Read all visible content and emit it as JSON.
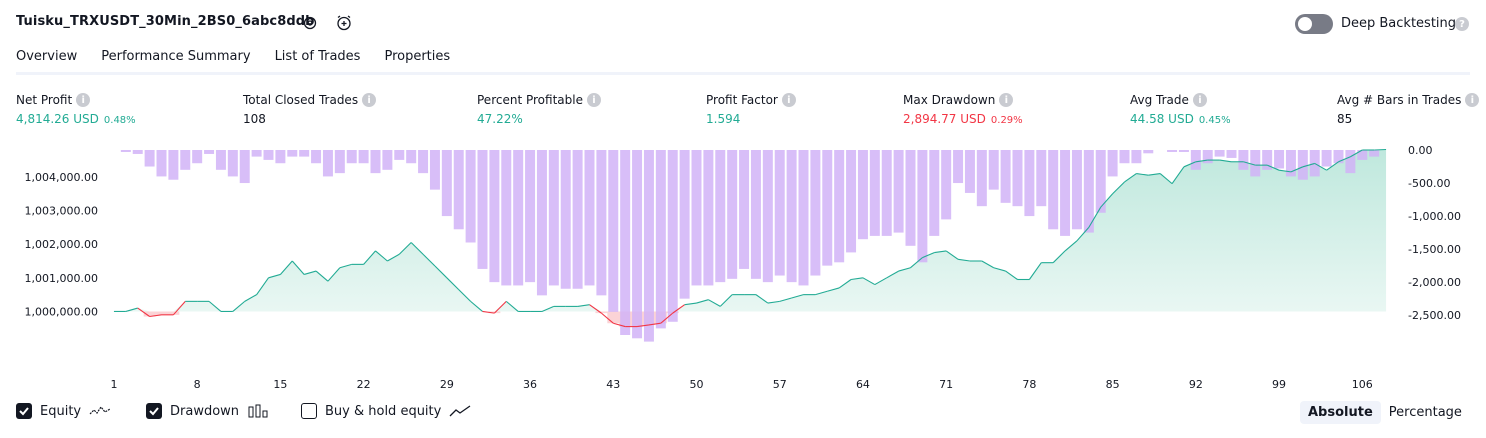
{
  "header": {
    "strategy_title": "Tuisku_TRXUSDT_30Min_2BS0_6abc8ddb",
    "settings_icon": "gear-icon",
    "alert_icon": "alarm-clock-plus-icon",
    "deep_backtesting_label": "Deep Backtesting",
    "deep_backtesting_on": false,
    "help_icon": "question-icon"
  },
  "tabs": [
    {
      "label": "Overview",
      "active": true
    },
    {
      "label": "Performance Summary",
      "active": false
    },
    {
      "label": "List of Trades",
      "active": false
    },
    {
      "label": "Properties",
      "active": false
    }
  ],
  "metrics": {
    "net_profit": {
      "label": "Net Profit",
      "value": "4,814.26 USD",
      "pct": "0.48%"
    },
    "total_closed_trades": {
      "label": "Total Closed Trades",
      "value": "108"
    },
    "percent_profitable": {
      "label": "Percent Profitable",
      "value": "47.22%"
    },
    "profit_factor": {
      "label": "Profit Factor",
      "value": "1.594"
    },
    "max_drawdown": {
      "label": "Max Drawdown",
      "value": "2,894.77 USD",
      "pct": "0.29%"
    },
    "avg_trade": {
      "label": "Avg Trade",
      "value": "44.58 USD",
      "pct": "0.45%"
    },
    "avg_bars": {
      "label": "Avg # Bars in Trades",
      "value": "85"
    }
  },
  "colors": {
    "green": "#22ab94",
    "red": "#f23645",
    "drawdown_bar": "#d1b3f7",
    "equity_fill": "#cdeee6"
  },
  "chart_data": {
    "type": "area",
    "x_ticks": [
      "1",
      "8",
      "15",
      "22",
      "29",
      "36",
      "43",
      "50",
      "57",
      "64",
      "71",
      "78",
      "85",
      "92",
      "99",
      "106"
    ],
    "y_left_ticks": [
      "1,004,000.00",
      "1,003,000.00",
      "1,002,000.00",
      "1,001,000.00",
      "1,000,000.00"
    ],
    "y_left_values": [
      1004000,
      1003000,
      1002000,
      1001000,
      1000000
    ],
    "y_right_ticks": [
      "0.00",
      "-500.00",
      "-1,000.00",
      "-1,500.00",
      "-2,000.00",
      "-2,500.00"
    ],
    "y_right_values": [
      0,
      -500,
      -1000,
      -1500,
      -2000,
      -2500
    ],
    "ylim_left": [
      999300,
      1004800
    ],
    "ylim_right": [
      -2800,
      0
    ],
    "series": [
      {
        "name": "Equity",
        "values": [
          1000000,
          1000000,
          1000100,
          999850,
          999900,
          999900,
          1000300,
          1000300,
          1000300,
          1000000,
          1000000,
          1000300,
          1000500,
          1001000,
          1001100,
          1001500,
          1001100,
          1001200,
          1000900,
          1001300,
          1001400,
          1001400,
          1001800,
          1001500,
          1001700,
          1002050,
          1001700,
          1001350,
          1001000,
          1000650,
          1000300,
          1000000,
          999950,
          1000300,
          1000000,
          1000000,
          1000000,
          1000150,
          1000150,
          1000150,
          1000200,
          999950,
          999650,
          999550,
          999550,
          999600,
          999650,
          999950,
          1000200,
          1000250,
          1000350,
          1000150,
          1000500,
          1000500,
          1000500,
          1000250,
          1000300,
          1000400,
          1000500,
          1000500,
          1000600,
          1000700,
          1000950,
          1001000,
          1000800,
          1001000,
          1001200,
          1001300,
          1001600,
          1001750,
          1001800,
          1001550,
          1001500,
          1001500,
          1001300,
          1001200,
          1000950,
          1000950,
          1001450,
          1001450,
          1001800,
          1002100,
          1002500,
          1003100,
          1003500,
          1003850,
          1004100,
          1004050,
          1004100,
          1003800,
          1004300,
          1004450,
          1004500,
          1004500,
          1004450,
          1004450,
          1004350,
          1004350,
          1004200,
          1004150,
          1004300,
          1004400,
          1004200,
          1004450,
          1004600,
          1004800,
          1004800,
          1004815
        ]
      },
      {
        "name": "Drawdown",
        "values": [
          0,
          -30,
          -60,
          -250,
          -400,
          -450,
          -300,
          -200,
          -60,
          -300,
          -400,
          -500,
          -100,
          -150,
          -200,
          -100,
          -100,
          -200,
          -400,
          -350,
          -200,
          -200,
          -350,
          -300,
          -150,
          -200,
          -350,
          -600,
          -1000,
          -1200,
          -1400,
          -1800,
          -2000,
          -2050,
          -2050,
          -2000,
          -2200,
          -2050,
          -2100,
          -2100,
          -2050,
          -2200,
          -2450,
          -2800,
          -2850,
          -2900,
          -2700,
          -2600,
          -2250,
          -2050,
          -2050,
          -2000,
          -1950,
          -1800,
          -1950,
          -2000,
          -1900,
          -2000,
          -2050,
          -1900,
          -1750,
          -1700,
          -1550,
          -1350,
          -1300,
          -1300,
          -1250,
          -1450,
          -1700,
          -1300,
          -1050,
          -500,
          -650,
          -850,
          -600,
          -800,
          -850,
          -1000,
          -850,
          -1200,
          -1300,
          -1200,
          -1250,
          -950,
          -400,
          -200,
          -200,
          -50,
          0,
          -30,
          -30,
          -300,
          -200,
          -100,
          -120,
          -300,
          -400,
          -300,
          -280,
          -400,
          -450,
          -400,
          -250,
          -200,
          -350,
          -150,
          -100,
          0
        ]
      }
    ]
  },
  "legend": {
    "equity": {
      "label": "Equity",
      "checked": true
    },
    "drawdown": {
      "label": "Drawdown",
      "checked": true
    },
    "buy_hold": {
      "label": "Buy & hold equity",
      "checked": false
    }
  },
  "view_mode": {
    "absolute": "Absolute",
    "percentage": "Percentage",
    "selected": "Absolute"
  }
}
